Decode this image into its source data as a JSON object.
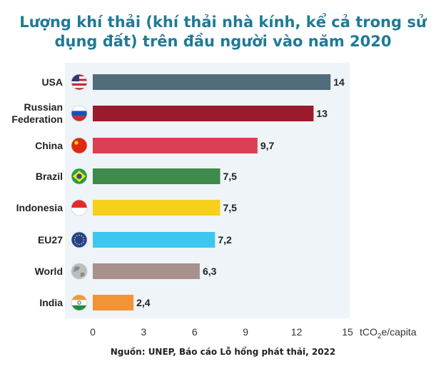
{
  "title": "Lượng khí thải (khí thải nhà kính, kể cả trong sử dụng đất) trên đầu người vào năm 2020",
  "source": "Nguồn: UNEP, Báo cáo Lỗ hổng phát thải, 2022",
  "chart_data": {
    "type": "bar",
    "orientation": "horizontal",
    "categories": [
      "USA",
      "Russian Federation",
      "China",
      "Brazil",
      "Indonesia",
      "EU27",
      "World",
      "India"
    ],
    "values": [
      14,
      13,
      9.7,
      7.5,
      7.5,
      7.2,
      6.3,
      2.4
    ],
    "value_labels": [
      "14",
      "13",
      "9,7",
      "7,5",
      "7,5",
      "7,2",
      "6,3",
      "2,4"
    ],
    "bar_colors": [
      "#4f6d7a",
      "#9b1b2c",
      "#dc3f55",
      "#3d8a4a",
      "#f7d019",
      "#3dc6ee",
      "#a8918c",
      "#f29336"
    ],
    "category_icons": [
      "usa-flag-icon",
      "russia-flag-icon",
      "china-flag-icon",
      "brazil-flag-icon",
      "indonesia-flag-icon",
      "eu-flag-icon",
      "globe-icon",
      "india-flag-icon"
    ],
    "xlim": [
      0,
      15
    ],
    "xticks": [
      0,
      3,
      6,
      9,
      12,
      15
    ],
    "xunit": "tCO2e/capita",
    "plot_background": "#eef4f7",
    "grid": false
  }
}
